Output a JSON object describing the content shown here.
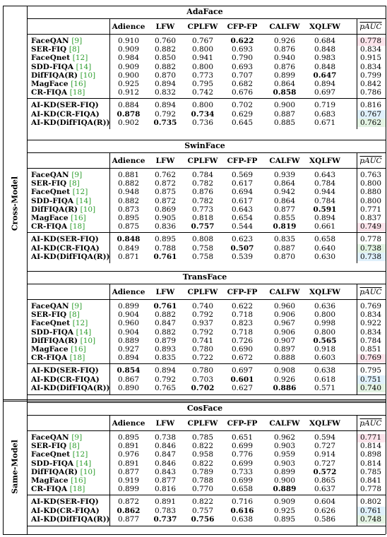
{
  "colors": {
    "pink": "#fbe3ea",
    "green": "#e3f3e3",
    "blue": "#dff0fb",
    "ref": "#2e9e2e"
  },
  "headers": [
    "Adience",
    "LFW",
    "CPLFW",
    "CFP-FP",
    "CALFW",
    "XQLFW",
    "pAUC"
  ],
  "groups": [
    {
      "label": "Cross-Model",
      "blocks": [
        0,
        1,
        2
      ]
    },
    {
      "label": "Same-Model",
      "blocks": [
        3
      ]
    }
  ],
  "blocks": [
    {
      "title": "AdaFace",
      "rows": [
        {
          "name": "FaceQAN",
          "ref": "[9]",
          "values": [
            "0.910",
            "0.760",
            "0.767",
            "0.622",
            "0.926",
            "0.684",
            "0.778"
          ],
          "bold": [
            3
          ],
          "shade": "pink"
        },
        {
          "name": "SER-FIQ",
          "ref": "[8]",
          "values": [
            "0.909",
            "0.882",
            "0.800",
            "0.693",
            "0.876",
            "0.848",
            "0.834"
          ],
          "bold": []
        },
        {
          "name": "FaceQnet",
          "ref": "[12]",
          "values": [
            "0.984",
            "0.850",
            "0.941",
            "0.790",
            "0.940",
            "0.983",
            "0.915"
          ],
          "bold": []
        },
        {
          "name": "SDD-FIQA",
          "ref": "[14]",
          "values": [
            "0.909",
            "0.882",
            "0.800",
            "0.693",
            "0.876",
            "0.848",
            "0.834"
          ],
          "bold": []
        },
        {
          "name": "DifFIQA(R)",
          "ref": "[10]",
          "values": [
            "0.900",
            "0.870",
            "0.773",
            "0.707",
            "0.899",
            "0.647",
            "0.799"
          ],
          "bold": [
            5
          ]
        },
        {
          "name": "MagFace",
          "ref": "[16]",
          "values": [
            "0.925",
            "0.894",
            "0.795",
            "0.682",
            "0.864",
            "0.894",
            "0.842"
          ],
          "bold": []
        },
        {
          "name": "CR-FIQA",
          "ref": "[18]",
          "values": [
            "0.912",
            "0.832",
            "0.742",
            "0.676",
            "0.858",
            "0.697",
            "0.786"
          ],
          "bold": [
            4
          ]
        },
        {
          "name": "AI-KD(SER-FIQ)",
          "ref": "",
          "values": [
            "0.884",
            "0.894",
            "0.800",
            "0.702",
            "0.900",
            "0.719",
            "0.816"
          ],
          "bold": []
        },
        {
          "name": "AI-KD(CR-FIQA)",
          "ref": "",
          "values": [
            "0.878",
            "0.792",
            "0.734",
            "0.629",
            "0.887",
            "0.683",
            "0.767"
          ],
          "bold": [
            0,
            2
          ],
          "shade": "blue"
        },
        {
          "name": "AI-KD(DifFIQA(R))",
          "ref": "",
          "values": [
            "0.902",
            "0.735",
            "0.736",
            "0.645",
            "0.885",
            "0.671",
            "0.762"
          ],
          "bold": [
            1
          ],
          "shade": "green"
        }
      ]
    },
    {
      "title": "SwinFace",
      "rows": [
        {
          "name": "FaceQAN",
          "ref": "[9]",
          "values": [
            "0.881",
            "0.762",
            "0.784",
            "0.569",
            "0.939",
            "0.643",
            "0.763"
          ],
          "bold": []
        },
        {
          "name": "SER-FIQ",
          "ref": "[8]",
          "values": [
            "0.882",
            "0.872",
            "0.782",
            "0.617",
            "0.864",
            "0.784",
            "0.800"
          ],
          "bold": []
        },
        {
          "name": "FaceQnet",
          "ref": "[12]",
          "values": [
            "0.948",
            "0.875",
            "0.876",
            "0.694",
            "0.942",
            "0.944",
            "0.880"
          ],
          "bold": []
        },
        {
          "name": "SDD-FIQA",
          "ref": "[14]",
          "values": [
            "0.882",
            "0.872",
            "0.782",
            "0.617",
            "0.864",
            "0.784",
            "0.800"
          ],
          "bold": []
        },
        {
          "name": "DifFIQA(R)",
          "ref": "[10]",
          "values": [
            "0.873",
            "0.869",
            "0.773",
            "0.643",
            "0.877",
            "0.591",
            "0.771"
          ],
          "bold": [
            5
          ]
        },
        {
          "name": "MagFace",
          "ref": "[16]",
          "values": [
            "0.895",
            "0.905",
            "0.818",
            "0.654",
            "0.855",
            "0.894",
            "0.837"
          ],
          "bold": []
        },
        {
          "name": "CR-FIQA",
          "ref": "[18]",
          "values": [
            "0.875",
            "0.836",
            "0.757",
            "0.544",
            "0.819",
            "0.661",
            "0.749"
          ],
          "bold": [
            2,
            4
          ],
          "shade": "pink"
        },
        {
          "name": "AI-KD(SER-FIQ)",
          "ref": "",
          "values": [
            "0.848",
            "0.895",
            "0.808",
            "0.623",
            "0.835",
            "0.658",
            "0.778"
          ],
          "bold": [
            0
          ]
        },
        {
          "name": "AI-KD(CR-FIQA)",
          "ref": "",
          "values": [
            "0.849",
            "0.788",
            "0.758",
            "0.507",
            "0.887",
            "0.640",
            "0.738"
          ],
          "bold": [
            3
          ],
          "shade": "green"
        },
        {
          "name": "AI-KD(DifFIQA(R))",
          "ref": "",
          "values": [
            "0.871",
            "0.761",
            "0.758",
            "0.539",
            "0.870",
            "0.630",
            "0.738"
          ],
          "bold": [
            1
          ],
          "shade": "blue"
        }
      ]
    },
    {
      "title": "TransFace",
      "rows": [
        {
          "name": "FaceQAN",
          "ref": "[9]",
          "values": [
            "0.899",
            "0.761",
            "0.740",
            "0.622",
            "0.960",
            "0.636",
            "0.769"
          ],
          "bold": [
            1
          ]
        },
        {
          "name": "SER-FIQ",
          "ref": "[8]",
          "values": [
            "0.904",
            "0.882",
            "0.792",
            "0.718",
            "0.906",
            "0.800",
            "0.834"
          ],
          "bold": []
        },
        {
          "name": "FaceQnet",
          "ref": "[12]",
          "values": [
            "0.960",
            "0.847",
            "0.937",
            "0.823",
            "0.967",
            "0.998",
            "0.922"
          ],
          "bold": []
        },
        {
          "name": "SDD-FIQA",
          "ref": "[14]",
          "values": [
            "0.904",
            "0.882",
            "0.792",
            "0.718",
            "0.906",
            "0.800",
            "0.834"
          ],
          "bold": []
        },
        {
          "name": "DifFIQA(R)",
          "ref": "[10]",
          "values": [
            "0.889",
            "0.879",
            "0.741",
            "0.726",
            "0.907",
            "0.565",
            "0.784"
          ],
          "bold": [
            5
          ]
        },
        {
          "name": "MagFace",
          "ref": "[16]",
          "values": [
            "0.927",
            "0.893",
            "0.780",
            "0.690",
            "0.897",
            "0.918",
            "0.851"
          ],
          "bold": []
        },
        {
          "name": "CR-FIQA",
          "ref": "[18]",
          "values": [
            "0.894",
            "0.835",
            "0.722",
            "0.672",
            "0.888",
            "0.603",
            "0.769"
          ],
          "bold": [],
          "shade": "pink"
        },
        {
          "name": "AI-KD(SER-FIQ)",
          "ref": "",
          "values": [
            "0.854",
            "0.894",
            "0.780",
            "0.697",
            "0.908",
            "0.638",
            "0.795"
          ],
          "bold": [
            0
          ]
        },
        {
          "name": "AI-KD(CR-FIQA)",
          "ref": "",
          "values": [
            "0.867",
            "0.792",
            "0.703",
            "0.601",
            "0.926",
            "0.618",
            "0.751"
          ],
          "bold": [
            3
          ],
          "shade": "blue"
        },
        {
          "name": "AI-KD(DifFIQA(R))",
          "ref": "",
          "values": [
            "0.890",
            "0.765",
            "0.702",
            "0.627",
            "0.886",
            "0.571",
            "0.740"
          ],
          "bold": [
            2,
            4
          ],
          "shade": "green"
        }
      ]
    },
    {
      "title": "CosFace",
      "rows": [
        {
          "name": "FaceQAN",
          "ref": "[9]",
          "values": [
            "0.895",
            "0.738",
            "0.785",
            "0.651",
            "0.962",
            "0.594",
            "0.771"
          ],
          "bold": [],
          "shade": "pink"
        },
        {
          "name": "SER-FIQ",
          "ref": "[8]",
          "values": [
            "0.891",
            "0.846",
            "0.822",
            "0.699",
            "0.903",
            "0.727",
            "0.814"
          ],
          "bold": []
        },
        {
          "name": "FaceQnet",
          "ref": "[12]",
          "values": [
            "0.976",
            "0.847",
            "0.958",
            "0.776",
            "0.959",
            "0.914",
            "0.898"
          ],
          "bold": []
        },
        {
          "name": "SDD-FIQA",
          "ref": "[14]",
          "values": [
            "0.891",
            "0.846",
            "0.822",
            "0.699",
            "0.903",
            "0.727",
            "0.814"
          ],
          "bold": []
        },
        {
          "name": "DifFIQA(R)",
          "ref": "[10]",
          "values": [
            "0.877",
            "0.843",
            "0.789",
            "0.733",
            "0.899",
            "0.572",
            "0.785"
          ],
          "bold": [
            5
          ]
        },
        {
          "name": "MagFace",
          "ref": "[16]",
          "values": [
            "0.919",
            "0.877",
            "0.788",
            "0.699",
            "0.900",
            "0.865",
            "0.841"
          ],
          "bold": []
        },
        {
          "name": "CR-FIQA",
          "ref": "[18]",
          "values": [
            "0.899",
            "0.816",
            "0.770",
            "0.658",
            "0.889",
            "0.637",
            "0.778"
          ],
          "bold": [
            4
          ]
        },
        {
          "name": "AI-KD(SER-FIQ)",
          "ref": "",
          "values": [
            "0.872",
            "0.891",
            "0.822",
            "0.716",
            "0.909",
            "0.604",
            "0.802"
          ],
          "bold": []
        },
        {
          "name": "AI-KD(CR-FIQA)",
          "ref": "",
          "values": [
            "0.862",
            "0.783",
            "0.757",
            "0.616",
            "0.925",
            "0.626",
            "0.761"
          ],
          "bold": [
            0,
            3
          ],
          "shade": "blue"
        },
        {
          "name": "AI-KD(DifFIQA(R))",
          "ref": "",
          "values": [
            "0.877",
            "0.737",
            "0.756",
            "0.638",
            "0.895",
            "0.586",
            "0.748"
          ],
          "bold": [
            1,
            2
          ],
          "shade": "green"
        }
      ]
    }
  ]
}
